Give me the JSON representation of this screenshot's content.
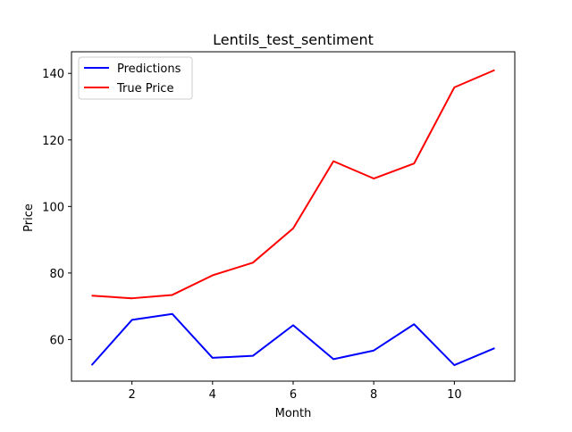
{
  "chart_data": {
    "type": "line",
    "title": "Lentils_test_sentiment",
    "xlabel": "Month",
    "ylabel": "Price",
    "x": [
      1,
      2,
      3,
      4,
      5,
      6,
      7,
      8,
      9,
      10,
      11
    ],
    "xlim": [
      0.5,
      11.5
    ],
    "ylim": [
      47.5,
      146.5
    ],
    "xticks": [
      2,
      4,
      6,
      8,
      10
    ],
    "yticks": [
      60,
      80,
      100,
      120,
      140
    ],
    "grid": false,
    "legend_position": "top-left",
    "series": [
      {
        "name": "Predictions",
        "color": "#0000ff",
        "values": [
          52.3,
          65.9,
          67.7,
          54.5,
          55.1,
          64.3,
          54.1,
          56.7,
          64.6,
          52.3,
          57.4
        ]
      },
      {
        "name": "True Price",
        "color": "#ff0000",
        "values": [
          73.2,
          72.4,
          73.4,
          79.3,
          83.1,
          93.4,
          113.6,
          108.4,
          112.9,
          135.8,
          141.0
        ]
      }
    ]
  }
}
